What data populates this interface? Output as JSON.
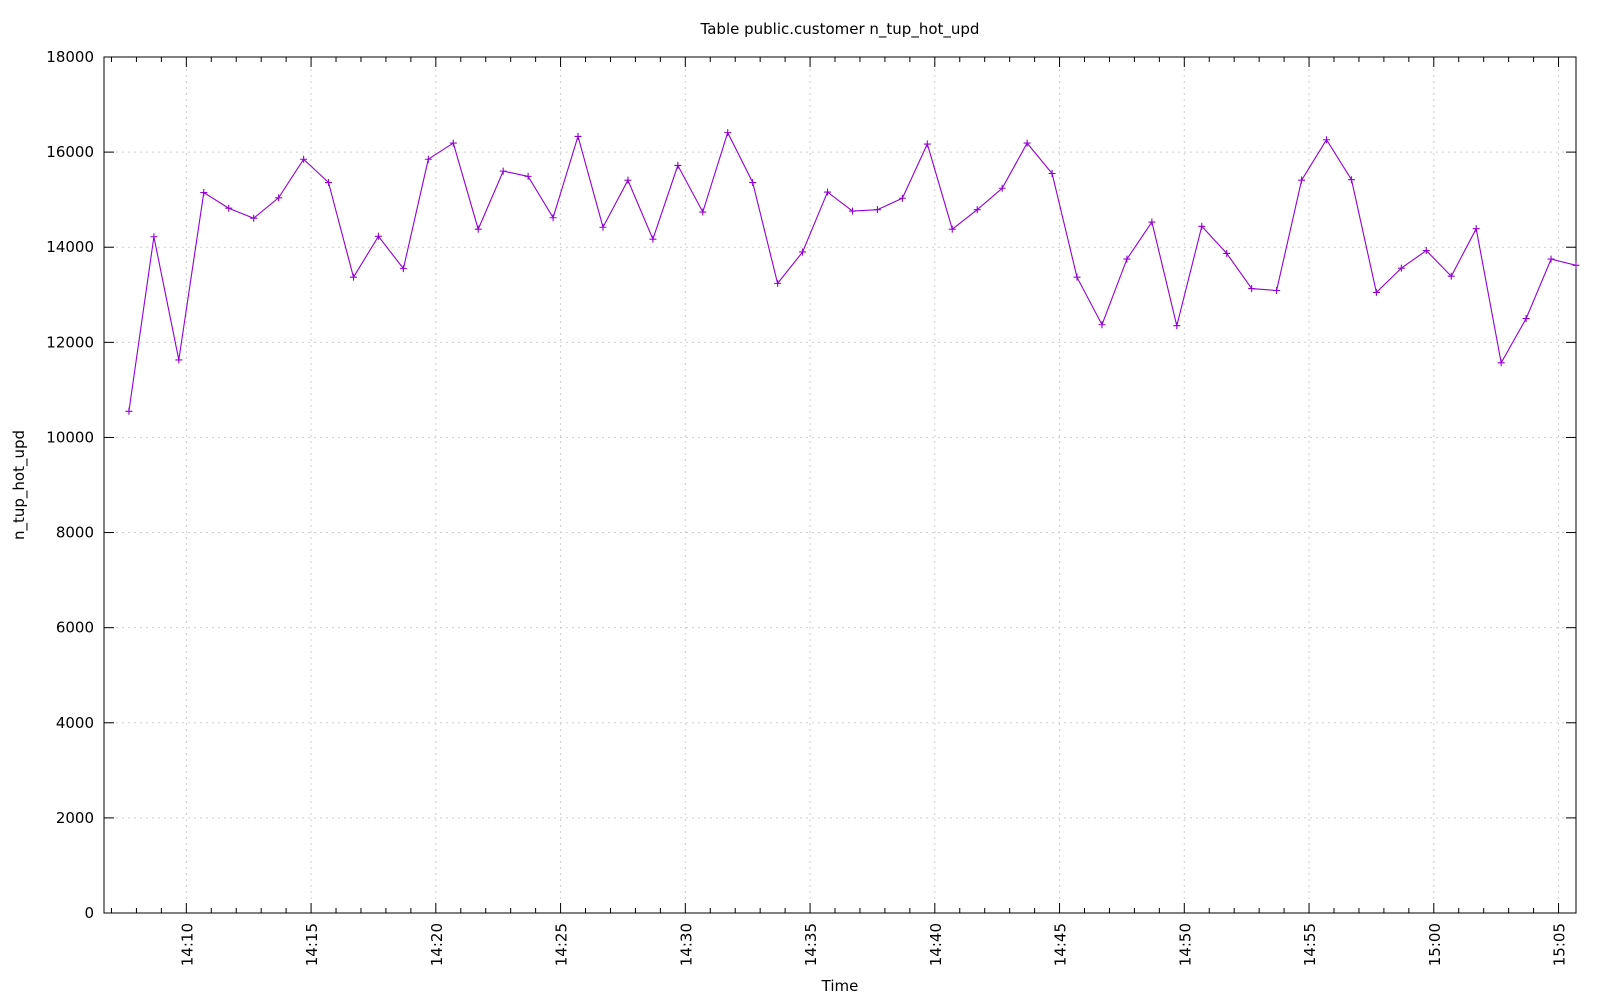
{
  "chart_data": {
    "type": "line",
    "title": "Table public.customer n_tup_hot_upd",
    "xlabel": "Time",
    "ylabel": "n_tup_hot_upd",
    "ylim": [
      0,
      18000
    ],
    "xlim": [
      "14:06:42",
      "15:05:42"
    ],
    "grid": true,
    "legend": "none",
    "y_ticks": [
      0,
      2000,
      4000,
      6000,
      8000,
      10000,
      12000,
      14000,
      16000,
      18000
    ],
    "x_ticks": [
      "14:10",
      "14:15",
      "14:20",
      "14:25",
      "14:30",
      "14:35",
      "14:40",
      "14:45",
      "14:50",
      "14:55",
      "15:00",
      "15:05"
    ],
    "line_color": "#9400d3",
    "series": [
      {
        "x": [
          "14:07:42",
          "14:08:42",
          "14:09:42",
          "14:10:42",
          "14:11:42",
          "14:12:42",
          "14:13:42",
          "14:14:42",
          "14:15:42",
          "14:16:42",
          "14:17:42",
          "14:18:42",
          "14:19:42",
          "14:20:42",
          "14:21:42",
          "14:22:42",
          "14:23:42",
          "14:24:42",
          "14:25:42",
          "14:26:42",
          "14:27:42",
          "14:28:42",
          "14:29:42",
          "14:30:42",
          "14:31:42",
          "14:32:42",
          "14:33:42",
          "14:34:42",
          "14:35:42",
          "14:36:42",
          "14:37:42",
          "14:38:42",
          "14:39:42",
          "14:40:42",
          "14:41:42",
          "14:42:42",
          "14:43:42",
          "14:44:42",
          "14:45:42",
          "14:46:42",
          "14:47:42",
          "14:48:42",
          "14:49:42",
          "14:50:42",
          "14:51:42",
          "14:52:42",
          "14:53:42",
          "14:54:42",
          "14:55:42",
          "14:56:42",
          "14:57:42",
          "14:58:42",
          "14:59:42",
          "15:00:42",
          "15:01:42",
          "15:02:42",
          "15:03:42",
          "15:04:42",
          "15:05:42"
        ],
        "y": [
          10550,
          14220,
          11630,
          15150,
          14820,
          14610,
          15040,
          15850,
          15360,
          13370,
          14230,
          13550,
          15850,
          16190,
          14380,
          15600,
          15490,
          14620,
          16330,
          14420,
          15410,
          14170,
          15720,
          14740,
          16410,
          15360,
          13240,
          13900,
          15160,
          14760,
          14790,
          15030,
          16170,
          14380,
          14790,
          15240,
          16190,
          15550,
          13370,
          12370,
          13750,
          14530,
          12350,
          14440,
          13870,
          13130,
          13090,
          15410,
          16260,
          15420,
          13050,
          13560,
          13930,
          13390,
          14390,
          11570,
          12500,
          13750,
          13620
        ]
      }
    ]
  }
}
